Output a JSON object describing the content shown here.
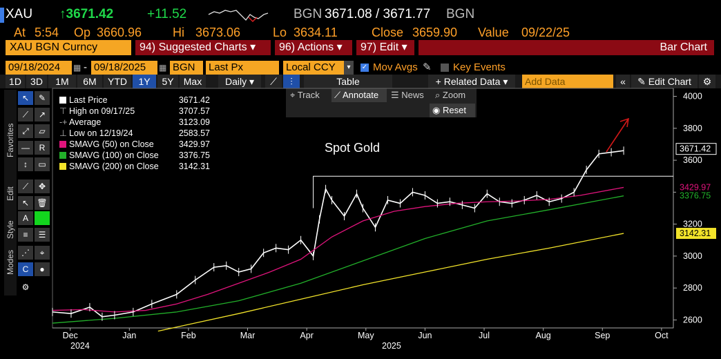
{
  "header": {
    "ticker": "XAU",
    "last": "↑3671.42",
    "change": "+11.52",
    "bgn_label": "BGN",
    "bid_ask": "3671.08 / 3671.77",
    "bgn_label2": "BGN",
    "at_label": "At",
    "time": "5:54",
    "op_label": "Op",
    "open": "3660.96",
    "hi_label": "Hi",
    "high": "3673.06",
    "lo_label": "Lo",
    "low": "3634.11",
    "close_label": "Close",
    "close": "3659.90",
    "value_label": "Value",
    "value_date": "09/22/25"
  },
  "toolbar": {
    "security": "XAU BGN Curncy",
    "suggested": "94) Suggested Charts ▾",
    "actions": "96) Actions ▾",
    "edit": "97) Edit ▾",
    "chart_type": "Bar Chart"
  },
  "settings": {
    "start_date": "09/18/2024",
    "end_date": "09/18/2025",
    "source": "BGN",
    "field": "Last Px",
    "currency": "Local CCY",
    "mov_avgs": "Mov Avgs",
    "key_events": "Key Events"
  },
  "periods": {
    "items": [
      "1D",
      "3D",
      "1M",
      "6M",
      "YTD",
      "1Y",
      "5Y",
      "Max"
    ],
    "selected": "1Y",
    "frequency": "Daily ▾",
    "table": "Table",
    "related": "+ Related Data ▾",
    "add_data_placeholder": "Add Data",
    "edit_chart": "Edit Chart"
  },
  "chart_tools": {
    "track": "Track",
    "annotate": "Annotate",
    "news": "News",
    "zoom": "Zoom",
    "reset": "Reset"
  },
  "side_tabs": {
    "favorites": "Favorites",
    "edit": "Edit",
    "style": "Style",
    "modes": "Modes"
  },
  "legend": [
    {
      "label": "Last Price",
      "value": "3671.42",
      "color": "#ffffff"
    },
    {
      "label": "High on 09/17/25",
      "value": "3707.57",
      "color": ""
    },
    {
      "label": "Average",
      "value": "3123.09",
      "color": ""
    },
    {
      "label": "Low on 12/19/24",
      "value": "2583.57",
      "color": ""
    },
    {
      "label": "SMAVG (50)  on Close",
      "value": "3429.97",
      "color": "#e0147c"
    },
    {
      "label": "SMAVG (100)  on Close",
      "value": "3376.75",
      "color": "#22b02a"
    },
    {
      "label": "SMAVG (200)  on Close",
      "value": "3142.31",
      "color": "#f2e32a"
    }
  ],
  "annotation": "Spot Gold",
  "chart_data": {
    "type": "line",
    "title": "Spot Gold",
    "ylim": [
      2550,
      4050
    ],
    "y_ticks": [
      2600,
      2800,
      3000,
      3200,
      3400,
      3600,
      3800,
      4000
    ],
    "x_labels": [
      "Dec",
      "Jan",
      "Feb",
      "Mar",
      "Apr",
      "May",
      "Jun",
      "Jul",
      "Aug",
      "Sep",
      "Oct"
    ],
    "year_labels": [
      "2024",
      "2025"
    ],
    "resistance_level": 3500,
    "series": [
      {
        "name": "Last Price",
        "color": "#ffffff",
        "x": [
          0,
          0.03,
          0.06,
          0.08,
          0.1,
          0.13,
          0.16,
          0.2,
          0.23,
          0.26,
          0.28,
          0.3,
          0.32,
          0.34,
          0.36,
          0.38,
          0.4,
          0.42,
          0.43,
          0.44,
          0.45,
          0.47,
          0.49,
          0.5,
          0.52,
          0.54,
          0.56,
          0.58,
          0.6,
          0.62,
          0.64,
          0.66,
          0.68,
          0.7,
          0.72,
          0.74,
          0.76,
          0.78,
          0.8,
          0.82,
          0.84,
          0.86,
          0.88,
          0.9,
          0.92
        ],
        "y": [
          2650,
          2640,
          2680,
          2620,
          2630,
          2650,
          2700,
          2760,
          2850,
          2930,
          2940,
          2900,
          2920,
          3020,
          3050,
          3040,
          3100,
          3000,
          3230,
          3420,
          3350,
          3250,
          3390,
          3300,
          3180,
          3350,
          3330,
          3400,
          3380,
          3330,
          3340,
          3320,
          3300,
          3390,
          3340,
          3330,
          3350,
          3380,
          3340,
          3360,
          3400,
          3540,
          3640,
          3650,
          3660
        ]
      },
      {
        "name": "SMAVG (50)",
        "color": "#e0147c",
        "value": "3429.97",
        "x": [
          0,
          0.05,
          0.1,
          0.15,
          0.2,
          0.25,
          0.3,
          0.35,
          0.4,
          0.45,
          0.5,
          0.55,
          0.6,
          0.65,
          0.7,
          0.75,
          0.8,
          0.85,
          0.92
        ],
        "y": [
          2660,
          2665,
          2650,
          2660,
          2700,
          2760,
          2830,
          2900,
          2980,
          3120,
          3220,
          3280,
          3310,
          3330,
          3340,
          3345,
          3355,
          3380,
          3430
        ]
      },
      {
        "name": "SMAVG (100)",
        "color": "#22b02a",
        "value": "3376.75",
        "x": [
          0,
          0.1,
          0.2,
          0.3,
          0.4,
          0.5,
          0.6,
          0.7,
          0.8,
          0.92
        ],
        "y": [
          2580,
          2610,
          2650,
          2720,
          2830,
          2970,
          3110,
          3220,
          3290,
          3377
        ]
      },
      {
        "name": "SMAVG (200)",
        "color": "#f2e32a",
        "value": "3142.31",
        "x": [
          0.17,
          0.3,
          0.4,
          0.5,
          0.6,
          0.7,
          0.8,
          0.92
        ],
        "y": [
          2530,
          2640,
          2730,
          2820,
          2900,
          2980,
          3050,
          3142
        ]
      }
    ],
    "price_labels": [
      {
        "value": "3671.42",
        "color": "#ffffff"
      },
      {
        "value": "3429.97",
        "color": "#e0147c"
      },
      {
        "value": "3376.75",
        "color": "#22b02a"
      },
      {
        "value": "3142.31",
        "color": "#f2e32a"
      }
    ]
  }
}
